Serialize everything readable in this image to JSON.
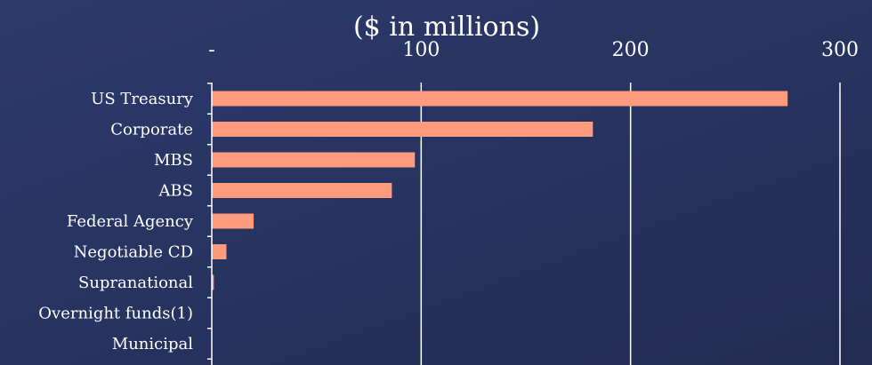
{
  "chart_data": {
    "type": "bar",
    "orientation": "horizontal",
    "title": "($ in millions)",
    "xlabel": "",
    "ylabel": "",
    "xlim": [
      0,
      300
    ],
    "x_ticks": [
      0,
      100,
      200,
      300
    ],
    "x_tick_labels": [
      "-",
      "100",
      "200",
      "300"
    ],
    "x_axis_position": "top",
    "grid": "vertical",
    "categories": [
      "US Treasury",
      "Corporate",
      "MBS",
      "ABS",
      "Federal Agency",
      "Negotiable CD",
      "Supranational",
      "Overnight funds(1)",
      "Municipal"
    ],
    "values": [
      275,
      182,
      97,
      86,
      20,
      7,
      1,
      0,
      0
    ],
    "bar_color": "#ff9a7c",
    "grid_color": "#ffffff"
  }
}
